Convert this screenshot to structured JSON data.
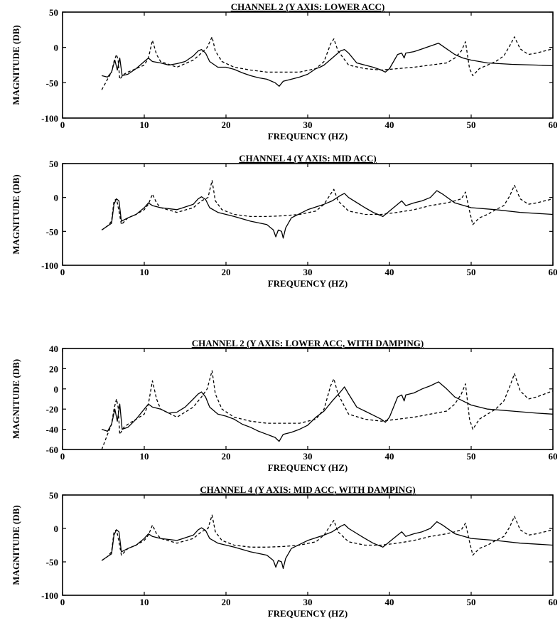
{
  "chart_data": [
    {
      "type": "line",
      "title": "CHANNEL 2 (Y AXIS: LOWER ACC)",
      "xlabel": "FREQUENCY (HZ)",
      "ylabel": "MAGNITUDE (DB)",
      "xlim": [
        0,
        60
      ],
      "ylim": [
        -100,
        50
      ],
      "xticks": [
        0,
        10,
        20,
        30,
        40,
        50,
        60
      ],
      "yticks": [
        -100,
        -50,
        0,
        50
      ],
      "grid": false,
      "series": [
        {
          "style": "solid",
          "color": "#000000",
          "x": [
            4.8,
            5.5,
            6.0,
            6.4,
            6.7,
            7.0,
            7.3,
            8,
            9,
            10,
            10.5,
            11,
            12,
            13,
            14,
            15,
            16,
            16.6,
            17,
            17.5,
            18,
            19,
            20,
            21,
            22,
            23,
            24,
            25,
            26,
            26.5,
            27,
            28,
            29,
            30,
            31,
            31.5,
            32,
            33,
            34,
            34.5,
            35,
            36,
            37,
            38,
            39,
            39.5,
            40,
            40.5,
            41,
            41.5,
            41.8,
            42,
            43,
            44,
            45,
            46,
            47,
            48,
            49,
            50,
            52,
            55,
            58,
            60
          ],
          "y": [
            -40,
            -42,
            -35,
            -18,
            -32,
            -15,
            -40,
            -38,
            -30,
            -20,
            -15,
            -20,
            -22,
            -25,
            -23,
            -20,
            -12,
            -5,
            -3,
            -8,
            -20,
            -28,
            -28,
            -31,
            -36,
            -40,
            -43,
            -45,
            -50,
            -55,
            -48,
            -45,
            -42,
            -38,
            -30,
            -28,
            -25,
            -15,
            -5,
            -3,
            -8,
            -22,
            -25,
            -28,
            -32,
            -35,
            -30,
            -20,
            -10,
            -8,
            -15,
            -8,
            -6,
            -2,
            2,
            6,
            -2,
            -10,
            -15,
            -18,
            -22,
            -24,
            -25,
            -26
          ]
        },
        {
          "style": "dashed",
          "color": "#000000",
          "x": [
            4.8,
            5.5,
            6.0,
            6.3,
            6.6,
            6.8,
            7.0,
            7.5,
            8,
            9,
            10,
            10.5,
            11,
            11.5,
            12,
            14,
            16,
            17,
            17.7,
            18.3,
            18.7,
            19.5,
            21,
            23,
            25,
            27,
            29,
            31,
            32,
            32.8,
            33.2,
            33.7,
            35,
            37,
            39,
            41,
            43,
            45,
            47,
            48,
            48.8,
            49.3,
            49.8,
            50.2,
            51,
            52,
            53,
            54,
            54.7,
            55.3,
            56,
            57,
            58,
            59,
            60
          ],
          "y": [
            -60,
            -45,
            -35,
            -20,
            -10,
            -18,
            -45,
            -38,
            -35,
            -30,
            -25,
            -15,
            10,
            -10,
            -20,
            -28,
            -18,
            -8,
            0,
            15,
            -5,
            -20,
            -28,
            -32,
            -35,
            -35,
            -35,
            -30,
            -20,
            5,
            12,
            -5,
            -25,
            -30,
            -32,
            -30,
            -28,
            -25,
            -22,
            -15,
            -5,
            8,
            -30,
            -40,
            -30,
            -25,
            -20,
            -12,
            2,
            15,
            -2,
            -10,
            -8,
            -5,
            -2
          ]
        }
      ]
    },
    {
      "type": "line",
      "title": "CHANNEL 4 (Y AXIS: MID ACC)",
      "xlabel": "FREQUENCY (HZ)",
      "ylabel": "MAGNITUDE (DB)",
      "xlim": [
        0,
        60
      ],
      "ylim": [
        -100,
        50
      ],
      "xticks": [
        0,
        10,
        20,
        30,
        40,
        50,
        60
      ],
      "yticks": [
        -100,
        -50,
        0,
        50
      ],
      "grid": false,
      "series": [
        {
          "style": "solid",
          "color": "#000000",
          "x": [
            4.8,
            5.5,
            6.0,
            6.3,
            6.6,
            6.9,
            7.2,
            8,
            9,
            10,
            10.5,
            11,
            12,
            14,
            16,
            16.6,
            17,
            17.5,
            18,
            19,
            21,
            23,
            25,
            25.8,
            26.1,
            26.4,
            26.8,
            27,
            27.3,
            28,
            30,
            32,
            33,
            34,
            34.5,
            35,
            37,
            38,
            39.2,
            40,
            41,
            41.5,
            42,
            43,
            44,
            45,
            45.8,
            46.5,
            48,
            50,
            53,
            56,
            60
          ],
          "y": [
            -48,
            -42,
            -38,
            -10,
            -2,
            -5,
            -35,
            -30,
            -25,
            -15,
            -8,
            -12,
            -15,
            -18,
            -10,
            -2,
            1,
            -3,
            -15,
            -22,
            -28,
            -35,
            -40,
            -48,
            -58,
            -48,
            -50,
            -60,
            -45,
            -30,
            -18,
            -10,
            -5,
            3,
            6,
            0,
            -15,
            -22,
            -28,
            -20,
            -10,
            -5,
            -12,
            -8,
            -5,
            0,
            10,
            5,
            -8,
            -15,
            -18,
            -22,
            -25
          ]
        },
        {
          "style": "dashed",
          "color": "#000000",
          "x": [
            4.8,
            5.5,
            6.0,
            6.3,
            6.6,
            6.9,
            7.2,
            8,
            9,
            10,
            10.5,
            11,
            11.5,
            12,
            14,
            16,
            17,
            17.8,
            18.3,
            18.7,
            19.5,
            21,
            23,
            25,
            27,
            29,
            31,
            32,
            32.8,
            33.2,
            33.7,
            35,
            37,
            39,
            41,
            43,
            45,
            47,
            48,
            48.8,
            49.3,
            49.8,
            50.2,
            51,
            52,
            53,
            54,
            54.7,
            55.3,
            56,
            57,
            58,
            59,
            60
          ],
          "y": [
            -48,
            -42,
            -35,
            -5,
            -2,
            -20,
            -40,
            -30,
            -25,
            -18,
            -10,
            5,
            -8,
            -15,
            -22,
            -15,
            -5,
            0,
            25,
            -5,
            -18,
            -25,
            -28,
            -28,
            -27,
            -25,
            -20,
            -10,
            5,
            12,
            -5,
            -20,
            -25,
            -25,
            -22,
            -18,
            -12,
            -8,
            -5,
            -2,
            8,
            -20,
            -40,
            -30,
            -25,
            -18,
            -12,
            2,
            18,
            -2,
            -10,
            -8,
            -5,
            -2
          ]
        }
      ]
    },
    {
      "type": "line",
      "title": "CHANNEL 2 (Y AXIS: LOWER ACC, WITH DAMPING)",
      "xlabel": "FREQUENCY (HZ)",
      "ylabel": "MAGNITUDE (DB)",
      "xlim": [
        0,
        60
      ],
      "ylim": [
        -60,
        40
      ],
      "xticks": [
        0,
        10,
        20,
        30,
        40,
        50,
        60
      ],
      "yticks": [
        -60,
        -40,
        -20,
        0,
        20,
        40
      ],
      "grid": false,
      "series": [
        {
          "style": "solid",
          "color": "#000000",
          "x": [
            4.8,
            5.5,
            6.0,
            6.4,
            6.7,
            7.0,
            7.3,
            8,
            9,
            10,
            10.5,
            11,
            12,
            13,
            14,
            15,
            16,
            16.6,
            17,
            17.5,
            18,
            19,
            20,
            21,
            22,
            23,
            24,
            25,
            26,
            26.5,
            27,
            28,
            29,
            30,
            31,
            31.5,
            32,
            33,
            34,
            34.5,
            35,
            36,
            37,
            38,
            39,
            39.5,
            40,
            40.5,
            41,
            41.5,
            41.8,
            42,
            43,
            44,
            45,
            46,
            47,
            48,
            49,
            50,
            52,
            55,
            58,
            60
          ],
          "y": [
            -40,
            -42,
            -35,
            -20,
            -32,
            -15,
            -40,
            -38,
            -30,
            -20,
            -15,
            -18,
            -20,
            -24,
            -23,
            -18,
            -10,
            -5,
            -3,
            -8,
            -18,
            -25,
            -27,
            -30,
            -35,
            -38,
            -42,
            -45,
            -48,
            -52,
            -45,
            -43,
            -40,
            -36,
            -28,
            -25,
            -22,
            -12,
            -3,
            2,
            -5,
            -18,
            -22,
            -26,
            -30,
            -33,
            -28,
            -18,
            -8,
            -6,
            -12,
            -6,
            -4,
            0,
            3,
            7,
            0,
            -8,
            -12,
            -16,
            -20,
            -22,
            -24,
            -25
          ]
        },
        {
          "style": "dashed",
          "color": "#000000",
          "x": [
            4.8,
            5.5,
            6.0,
            6.3,
            6.6,
            6.8,
            7.0,
            7.5,
            8,
            9,
            10,
            10.5,
            11,
            11.5,
            12,
            14,
            16,
            17,
            17.7,
            18.3,
            18.7,
            19.5,
            21,
            23,
            25,
            27,
            29,
            31,
            32,
            32.8,
            33.2,
            33.7,
            35,
            37,
            39,
            41,
            43,
            45,
            47,
            48,
            48.8,
            49.3,
            49.8,
            50.2,
            51,
            52,
            53,
            54,
            54.7,
            55.3,
            56,
            57,
            58,
            59,
            60
          ],
          "y": [
            -60,
            -45,
            -35,
            -20,
            -10,
            -18,
            -45,
            -38,
            -35,
            -30,
            -25,
            -15,
            8,
            -10,
            -20,
            -28,
            -18,
            -8,
            0,
            18,
            -5,
            -20,
            -28,
            -32,
            -34,
            -34,
            -34,
            -30,
            -20,
            3,
            10,
            -5,
            -25,
            -30,
            -32,
            -30,
            -28,
            -25,
            -22,
            -15,
            -5,
            5,
            -30,
            -40,
            -30,
            -25,
            -20,
            -12,
            2,
            15,
            -2,
            -10,
            -8,
            -5,
            -2
          ]
        }
      ]
    },
    {
      "type": "line",
      "title": "CHANNEL 4 (Y AXIS: MID ACC, WITH DAMPING)",
      "xlabel": "FREQUENCY (HZ)",
      "ylabel": "MAGNITUDE (DB)",
      "xlim": [
        0,
        60
      ],
      "ylim": [
        -100,
        50
      ],
      "xticks": [
        0,
        10,
        20,
        30,
        40,
        50,
        60
      ],
      "yticks": [
        -100,
        -50,
        0,
        50
      ],
      "grid": false,
      "series": [
        {
          "style": "solid",
          "color": "#000000",
          "x": [
            4.8,
            5.5,
            6.0,
            6.3,
            6.6,
            6.9,
            7.2,
            8,
            9,
            10,
            10.5,
            11,
            12,
            14,
            16,
            16.6,
            17,
            17.5,
            18,
            19,
            21,
            23,
            25,
            25.8,
            26.1,
            26.4,
            26.8,
            27,
            27.3,
            28,
            30,
            32,
            33,
            34,
            34.5,
            35,
            37,
            38,
            39.2,
            40,
            41,
            41.5,
            42,
            43,
            44,
            45,
            45.8,
            46.5,
            48,
            50,
            53,
            56,
            60
          ],
          "y": [
            -48,
            -42,
            -38,
            -10,
            -2,
            -5,
            -35,
            -30,
            -25,
            -15,
            -8,
            -12,
            -15,
            -18,
            -10,
            -2,
            1,
            -3,
            -15,
            -22,
            -28,
            -35,
            -40,
            -48,
            -58,
            -48,
            -50,
            -60,
            -45,
            -30,
            -18,
            -10,
            -5,
            3,
            6,
            0,
            -15,
            -22,
            -28,
            -20,
            -10,
            -5,
            -12,
            -8,
            -5,
            0,
            10,
            5,
            -8,
            -15,
            -18,
            -22,
            -25
          ]
        },
        {
          "style": "dashed",
          "color": "#000000",
          "x": [
            4.8,
            5.5,
            6.0,
            6.3,
            6.6,
            6.9,
            7.2,
            8,
            9,
            10,
            10.5,
            11,
            11.5,
            12,
            14,
            16,
            17,
            17.8,
            18.3,
            18.7,
            19.5,
            21,
            23,
            25,
            27,
            29,
            31,
            32,
            32.8,
            33.2,
            33.7,
            35,
            37,
            39,
            41,
            43,
            45,
            47,
            48,
            48.8,
            49.3,
            49.8,
            50.2,
            51,
            52,
            53,
            54,
            54.7,
            55.3,
            56,
            57,
            58,
            59,
            60
          ],
          "y": [
            -48,
            -42,
            -35,
            -5,
            -2,
            -20,
            -40,
            -30,
            -25,
            -18,
            -10,
            5,
            -8,
            -15,
            -22,
            -15,
            -5,
            0,
            20,
            -5,
            -18,
            -25,
            -28,
            -28,
            -27,
            -25,
            -20,
            -10,
            5,
            12,
            -5,
            -20,
            -25,
            -25,
            -22,
            -18,
            -12,
            -8,
            -5,
            -2,
            8,
            -20,
            -40,
            -30,
            -25,
            -18,
            -12,
            2,
            18,
            -2,
            -10,
            -8,
            -5,
            -2
          ]
        }
      ]
    }
  ]
}
